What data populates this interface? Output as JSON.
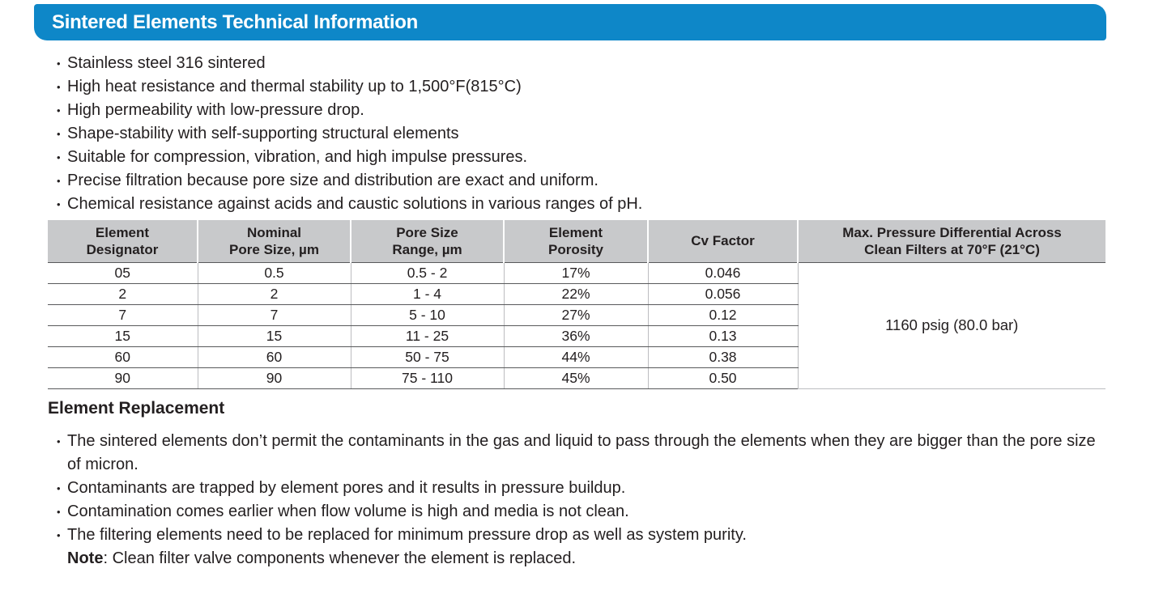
{
  "header": {
    "title": "Sintered Elements Technical Information",
    "bar_color": "#0E87C8"
  },
  "features": {
    "items": [
      "Stainless steel 316 sintered",
      "High heat resistance and thermal stability up to 1,500°F(815°C)",
      "High permeability with low-pressure drop.",
      "Shape-stability with self-supporting structural elements",
      "Suitable for compression, vibration, and high impulse pressures.",
      "Precise filtration because pore size and distribution are exact and uniform.",
      "Chemical resistance against acids and caustic solutions in various ranges of pH."
    ]
  },
  "table": {
    "columns": [
      "Element\nDesignator",
      "Nominal\nPore Size, µm",
      "Pore Size\nRange, µm",
      "Element\nPorosity",
      "Cv Factor",
      "Max. Pressure Differential Across\nClean Filters at 70°F (21°C)"
    ],
    "rows": [
      [
        "05",
        "0.5",
        "0.5 - 2",
        "17%",
        "0.046"
      ],
      [
        "2",
        "2",
        "1 - 4",
        "22%",
        "0.056"
      ],
      [
        "7",
        "7",
        "5 - 10",
        "27%",
        "0.12"
      ],
      [
        "15",
        "15",
        "11 - 25",
        "36%",
        "0.13"
      ],
      [
        "60",
        "60",
        "50 - 75",
        "44%",
        "0.38"
      ],
      [
        "90",
        "90",
        "75 - 110",
        "45%",
        "0.50"
      ]
    ],
    "merged_value": "1160 psig (80.0 bar)",
    "header_bg": "#C8C9CB"
  },
  "replacement": {
    "heading": "Element Replacement",
    "items": [
      "The sintered elements don’t permit the contaminants in the gas and liquid to pass through the elements when they  are bigger than the pore size of micron.",
      "Contaminants are trapped by element pores and it results in pressure buildup.",
      "Contamination comes earlier when flow volume is high and media is not clean.",
      "The filtering elements need to be replaced for minimum pressure drop as well as system purity."
    ],
    "note_label": "Note",
    "note_text": " : Clean filter valve components whenever the element is replaced."
  },
  "icons": {
    "bullet": "•"
  }
}
